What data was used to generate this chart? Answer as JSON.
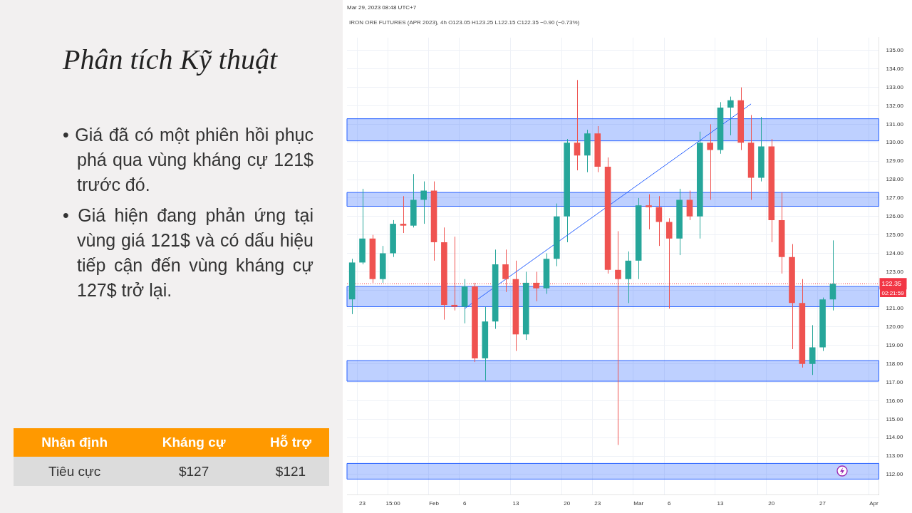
{
  "chart_data": {
    "type": "candlestick",
    "title": "Phân tích Kỹ thuật",
    "subtitle": "IRON ORE FUTURES (APR 2023), 4h  O123.05 H123.25 L122.15 C122.35 −0.90 (−0.73%)",
    "annotations": [
      "Mar 29, 2023 08:48 UTC+7",
      "• Giá đã có một phiên hồi phục phá qua vùng kháng cự 121$ trước đó.",
      "• Giá hiện đang phản ứng tại vùng giá 121$ và có dấu hiệu tiếp cận đến vùng kháng cự 127$ trở lại.",
      "Nhận định",
      "Kháng cự",
      "Hỗ trợ",
      "Tiêu cực",
      "$127",
      "$121",
      "02:21:59"
    ],
    "categories": [
      null,
      "23",
      null,
      null,
      "15:00",
      null,
      null,
      null,
      "Feb",
      null,
      null,
      "6",
      null,
      null,
      null,
      null,
      "13",
      null,
      null,
      null,
      null,
      "20",
      null,
      null,
      "23",
      null,
      null,
      null,
      "Mar",
      null,
      null,
      "6",
      null,
      null,
      null,
      null,
      "13",
      null,
      null,
      null,
      null,
      "20",
      null,
      null,
      null,
      null,
      "27",
      null,
      null,
      null,
      null,
      "Apr"
    ],
    "ohlc": [
      [
        121.5,
        123.7,
        120.7,
        123.5
      ],
      [
        123.5,
        127.5,
        123.4,
        124.8
      ],
      [
        124.8,
        125.0,
        122.4,
        122.6
      ],
      [
        122.6,
        124.4,
        122.4,
        124.0
      ],
      [
        124.0,
        125.8,
        123.8,
        125.6
      ],
      [
        125.6,
        127.1,
        125.1,
        125.5
      ],
      [
        125.5,
        128.3,
        125.4,
        126.9
      ],
      [
        126.9,
        127.9,
        125.6,
        127.4
      ],
      [
        127.4,
        127.9,
        123.6,
        124.6
      ],
      [
        124.6,
        125.4,
        120.4,
        121.2
      ],
      [
        121.2,
        124.9,
        120.9,
        121.1
      ],
      [
        121.1,
        122.6,
        120.2,
        122.2
      ],
      [
        122.2,
        122.4,
        118.1,
        118.3
      ],
      [
        118.3,
        121.1,
        117.1,
        120.3
      ],
      [
        120.3,
        124.2,
        119.9,
        123.4
      ],
      [
        123.4,
        124.2,
        121.9,
        122.6
      ],
      [
        122.6,
        123.6,
        118.7,
        119.6
      ],
      [
        119.6,
        123.0,
        119.3,
        122.4
      ],
      [
        122.4,
        123.0,
        121.4,
        122.1
      ],
      [
        122.1,
        124.0,
        121.8,
        123.7
      ],
      [
        123.7,
        126.7,
        123.3,
        126.0
      ],
      [
        126.0,
        130.2,
        124.6,
        130.0
      ],
      [
        130.0,
        133.4,
        128.5,
        129.3
      ],
      [
        129.3,
        130.7,
        128.4,
        130.5
      ],
      [
        130.5,
        130.9,
        128.4,
        128.7
      ],
      [
        128.7,
        129.2,
        122.9,
        123.1
      ],
      [
        123.1,
        125.2,
        113.6,
        122.6
      ],
      [
        122.6,
        124.1,
        121.3,
        123.6
      ],
      [
        123.6,
        127.0,
        122.6,
        126.6
      ],
      [
        126.6,
        127.2,
        125.3,
        126.5
      ],
      [
        126.5,
        127.1,
        124.4,
        125.7
      ],
      [
        125.7,
        125.9,
        121.0,
        124.8
      ],
      [
        124.8,
        127.5,
        123.9,
        126.9
      ],
      [
        126.9,
        127.4,
        125.8,
        126.0
      ],
      [
        126.0,
        130.6,
        124.8,
        130.0
      ],
      [
        130.0,
        131.0,
        126.9,
        129.6
      ],
      [
        129.6,
        132.2,
        129.4,
        131.9
      ],
      [
        131.9,
        132.5,
        130.4,
        132.3
      ],
      [
        132.3,
        133.0,
        129.6,
        130.0
      ],
      [
        130.0,
        131.5,
        126.9,
        128.1
      ],
      [
        128.1,
        131.4,
        127.9,
        129.8
      ],
      [
        129.8,
        130.2,
        124.6,
        125.8
      ],
      [
        125.8,
        127.3,
        122.9,
        123.8
      ],
      [
        123.8,
        124.5,
        118.8,
        121.3
      ],
      [
        121.3,
        122.6,
        117.8,
        118.0
      ],
      [
        118.0,
        120.1,
        117.4,
        118.9
      ],
      [
        118.9,
        121.6,
        118.7,
        121.5
      ],
      [
        121.5,
        124.7,
        120.9,
        122.35
      ],
      null,
      null,
      null,
      null
    ],
    "colors": [
      "#26a69a",
      "#26a69a",
      "#ef5350",
      "#26a69a",
      "#26a69a",
      "#ef5350",
      "#26a69a",
      "#26a69a",
      "#ef5350",
      "#ef5350",
      "#ef5350",
      "#26a69a",
      "#ef5350",
      "#26a69a",
      "#26a69a",
      "#ef5350",
      "#ef5350",
      "#26a69a",
      "#ef5350",
      "#26a69a",
      "#26a69a",
      "#26a69a",
      "#ef5350",
      "#26a69a",
      "#ef5350",
      "#ef5350",
      "#ef5350",
      "#26a69a",
      "#26a69a",
      "#ef5350",
      "#ef5350",
      "#ef5350",
      "#26a69a",
      "#ef5350",
      "#26a69a",
      "#ef5350",
      "#26a69a",
      "#26a69a",
      "#ef5350",
      "#ef5350",
      "#26a69a",
      "#ef5350",
      "#ef5350",
      "#ef5350",
      "#ef5350",
      "#26a69a",
      "#26a69a",
      "#26a69a",
      null,
      null,
      null,
      null
    ],
    "series": [
      {
        "type": "line",
        "color": "#2962ff",
        "values": [
          null,
          null,
          null,
          null,
          null,
          null,
          null,
          null,
          null,
          null,
          null,
          121.0,
          null,
          null,
          null,
          null,
          null,
          null,
          null,
          null,
          null,
          null,
          null,
          null,
          null,
          null,
          null,
          null,
          null,
          null,
          null,
          null,
          null,
          null,
          null,
          null,
          null,
          null,
          null,
          132.1,
          null,
          null,
          null,
          null,
          null,
          null,
          null,
          null,
          null,
          null,
          null,
          null
        ]
      }
    ],
    "ylim": [
      110.9,
      135.7
    ],
    "yticks": [
      {
        "value": 112,
        "label": "112.00"
      },
      {
        "value": 113,
        "label": "113.00"
      },
      {
        "value": 114,
        "label": "114.00"
      },
      {
        "value": 115,
        "label": "115.00"
      },
      {
        "value": 116,
        "label": "116.00"
      },
      {
        "value": 117,
        "label": "117.00"
      },
      {
        "value": 118,
        "label": "118.00"
      },
      {
        "value": 119,
        "label": "119.00"
      },
      {
        "value": 120,
        "label": "120.00"
      },
      {
        "value": 121,
        "label": "121.00"
      },
      {
        "value": 122,
        "label": null
      },
      {
        "value": 123,
        "label": "123.00"
      },
      {
        "value": 124,
        "label": "124.00"
      },
      {
        "value": 125,
        "label": "125.00"
      },
      {
        "value": 126,
        "label": "126.00"
      },
      {
        "value": 127,
        "label": "127.00"
      },
      {
        "value": 128,
        "label": "128.00"
      },
      {
        "value": 129,
        "label": "129.00"
      },
      {
        "value": 130,
        "label": "130.00"
      },
      {
        "value": 131,
        "label": "131.00"
      },
      {
        "value": 132,
        "label": "132.00"
      },
      {
        "value": 133,
        "label": "133.00"
      },
      {
        "value": 134,
        "label": "134.00"
      },
      {
        "value": 135,
        "label": "135.00"
      }
    ],
    "grid": true,
    "bands": [
      {
        "axis": "y",
        "from": 130.1,
        "to": 131.3,
        "color": "#2962ff"
      },
      {
        "axis": "y",
        "from": 126.55,
        "to": 127.3,
        "color": "#2962ff"
      },
      {
        "axis": "y",
        "from": 121.1,
        "to": 122.2,
        "color": "#2962ff"
      },
      {
        "axis": "y",
        "from": 117.06,
        "to": 118.18,
        "color": "#2962ff"
      },
      {
        "axis": "y",
        "from": 111.75,
        "to": 112.6,
        "color": "#2962ff"
      }
    ],
    "ref_lines": [
      {
        "axis": "y",
        "value": 122.35,
        "label": "122.35",
        "color": "#f23645",
        "line_style": "dotted"
      }
    ]
  }
}
